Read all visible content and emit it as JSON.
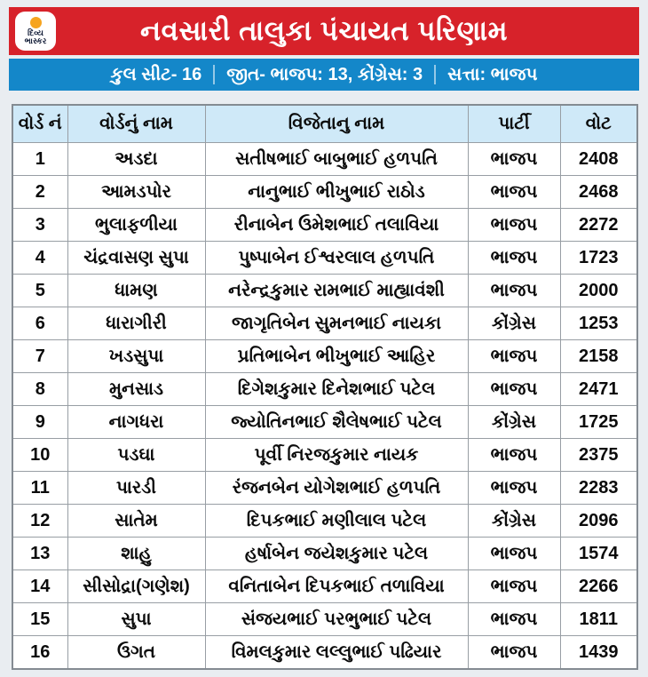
{
  "colors": {
    "page_bg": "#e9edf1",
    "banner_red": "#d7222a",
    "summary_blue": "#1487c9",
    "table_header_bg": "#cfe9f8",
    "grid_border": "#989ea4",
    "logo_dot_orange": "#f6a41f",
    "title_text": "#ffffff"
  },
  "logo": {
    "line1": "દિવ્ય",
    "line2": "ભાસ્કર"
  },
  "header": {
    "title": "નવસારી તાલુકા પંચાયત પરિણામ"
  },
  "subheader": {
    "seat_total": "કુલ સીટ- 16",
    "win_tally": "જીત- ભાજપ: 13, કોંગ્રેસ: 3",
    "ruling_party": "સત્તા: ભાજપ"
  },
  "chart_data": {
    "type": "table",
    "title": "નવસારી તાલુકા પંચાયત પરિણામ",
    "summary": {
      "total_seats": 16,
      "bjp_wins": 13,
      "congress_wins": 3,
      "ruling_party": "ભાજપ"
    },
    "columns": [
      "વોર્ડ નં",
      "વોર્ડનું નામ",
      "વિજેતાનુ નામ",
      "પાર્ટી",
      "વોટ"
    ],
    "rows": [
      [
        "1",
        "અડદા",
        "સતીષભાઈ બાબુભાઈ હળપતિ",
        "ભાજપ",
        "2408"
      ],
      [
        "2",
        "આમડપોર",
        "નાનુભાઈ ભીખુભાઈ રાઠોડ",
        "ભાજપ",
        "2468"
      ],
      [
        "3",
        "ભુલાફળીયા",
        "રીનાબેન ઉમેશભાઈ તલાવિયા",
        "ભાજપ",
        "2272"
      ],
      [
        "4",
        "ચંદ્રવાસણ સુપા",
        "પુષ્પાબેન ઈશ્વરલાલ હળપતિ",
        "ભાજપ",
        "1723"
      ],
      [
        "5",
        "ધામણ",
        "નરેન્દ્રકુમાર રામભાઈ માહ્યાવંશી",
        "ભાજપ",
        "2000"
      ],
      [
        "6",
        "ધારાગીરી",
        "જાગૃતિબેન સુમનભાઈ નાયકા",
        "કોંગ્રેસ",
        "1253"
      ],
      [
        "7",
        "ખડસુપા",
        "પ્રતિભાબેન ભીખુભાઈ આહિર",
        "ભાજપ",
        "2158"
      ],
      [
        "8",
        "મુનસાડ",
        "દિગેશકુમાર દિનેશભાઈ પટેલ",
        "ભાજપ",
        "2471"
      ],
      [
        "9",
        "નાગધરા",
        "જ્યોતિનભાઈ શૈલેષભાઈ પટેલ",
        "કોંગ્રેસ",
        "1725"
      ],
      [
        "10",
        "પડઘા",
        "પૂર્વી નિરજકુમાર નાયક",
        "ભાજપ",
        "2375"
      ],
      [
        "11",
        "પારડી",
        "રંજનબેન યોગેશભાઈ હળપતિ",
        "ભાજપ",
        "2283"
      ],
      [
        "12",
        "સાતેમ",
        "દિપકભાઈ મણીલાલ પટેલ",
        "કોંગ્રેસ",
        "2096"
      ],
      [
        "13",
        "શાહુ",
        "હર્ષાબેન જયેશકુમાર પટેલ",
        "ભાજપ",
        "1574"
      ],
      [
        "14",
        "સીસોદ્રા(ગણેશ)",
        "વનિતાબેન દિપકભાઈ તળાવિયા",
        "ભાજપ",
        "2266"
      ],
      [
        "15",
        "સુપા",
        "સંજયભાઈ પરભુભાઈ પટેલ",
        "ભાજપ",
        "1811"
      ],
      [
        "16",
        "ઉગત",
        "વિમલકુમાર લલ્લુભાઈ પઢિયાર",
        "ભાજપ",
        "1439"
      ]
    ]
  }
}
